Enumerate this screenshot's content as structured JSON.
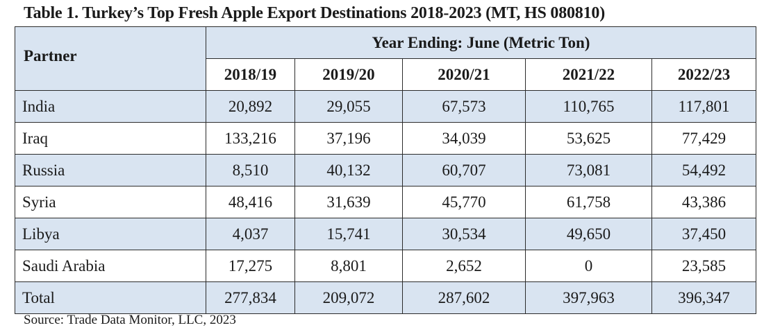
{
  "title": "Table 1. Turkey’s Top Fresh Apple Export Destinations 2018-2023 (MT, HS 080810)",
  "header": {
    "partner_label": "Partner",
    "span_label": "Year Ending: June (Metric Ton)",
    "years": [
      "2018/19",
      "2019/20",
      "2020/21",
      "2021/22",
      "2022/23"
    ]
  },
  "rows": [
    {
      "partner": "India",
      "values": [
        "20,892",
        "29,055",
        "67,573",
        "110,765",
        "117,801"
      ]
    },
    {
      "partner": "Iraq",
      "values": [
        "133,216",
        "37,196",
        "34,039",
        "53,625",
        "77,429"
      ]
    },
    {
      "partner": "Russia",
      "values": [
        "8,510",
        "40,132",
        "60,707",
        "73,081",
        "54,492"
      ]
    },
    {
      "partner": "Syria",
      "values": [
        "48,416",
        "31,639",
        "45,770",
        "61,758",
        "43,386"
      ]
    },
    {
      "partner": "Libya",
      "values": [
        "4,037",
        "15,741",
        "30,534",
        "49,650",
        "37,450"
      ]
    },
    {
      "partner": "Saudi Arabia",
      "values": [
        "17,275",
        "8,801",
        "2,652",
        "0",
        "23,585"
      ]
    }
  ],
  "total": {
    "partner": "Total",
    "values": [
      "277,834",
      "209,072",
      "287,602",
      "397,963",
      "396,347"
    ]
  },
  "source": "Source: Trade Data Monitor, LLC, 2023",
  "colors": {
    "header_fill": "#d9e4f1",
    "border": "#2b2b2b"
  }
}
